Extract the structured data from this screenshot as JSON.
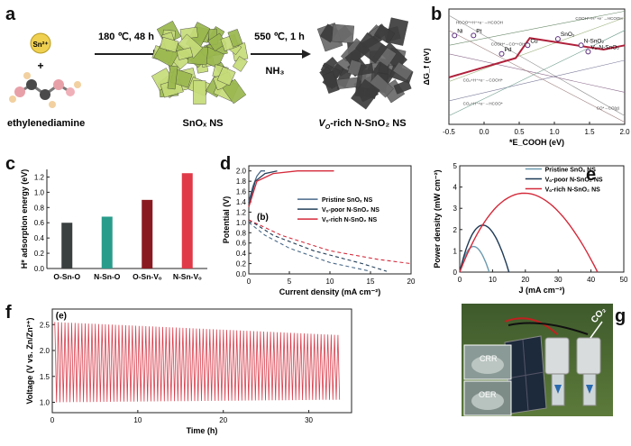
{
  "figure": {
    "panel_labels": [
      "a",
      "b",
      "c",
      "d",
      "e",
      "f",
      "g"
    ]
  },
  "panel_a": {
    "ion_label": "Sn²⁺",
    "plus": "+",
    "molecule_label": "ethylenediamine",
    "step1_condition": "180 ℃, 48 h",
    "step2_condition": "550 ℃, 1 h",
    "step2_gas": "NH₃",
    "product1": "SnOₓ NS",
    "product2_prefix": "V",
    "product2_sub": "O",
    "product2_suffix": "-rich N-SnO₂ NS",
    "colors": {
      "sheet1": "#b9d36a",
      "sheet2": "#5a5a5a",
      "arrow": "#222222"
    }
  },
  "chart_data": [
    {
      "id": "b",
      "type": "line",
      "xlabel": "*E_COOH (eV)",
      "ylabel": "ΔG_f (eV)",
      "xlim": [
        -0.5,
        2.0
      ],
      "ylim": [
        -1.3,
        1.4
      ],
      "xticks": [
        "-0.5",
        "0.0",
        "0.5",
        "1.0",
        "1.5",
        "2.0"
      ],
      "volcano": {
        "x": [
          -0.5,
          0.45,
          0.65,
          1.7,
          2.0
        ],
        "y": [
          -0.2,
          0.25,
          0.72,
          0.45,
          0.55
        ],
        "color": "#b0203a"
      },
      "points": [
        {
          "name": "Ni",
          "x": -0.42,
          "y": 0.78
        },
        {
          "name": "Pt",
          "x": -0.15,
          "y": 0.78
        },
        {
          "name": "Pd",
          "x": 0.25,
          "y": 0.35
        },
        {
          "name": "Cu",
          "x": 0.62,
          "y": 0.55
        },
        {
          "name": "SnO₂",
          "x": 1.05,
          "y": 0.7
        },
        {
          "name": "N-SnO₂",
          "x": 1.38,
          "y": 0.55
        },
        {
          "name": "Vₒ-N-SnO₂",
          "x": 1.48,
          "y": 0.4
        }
      ],
      "annotations": [
        "HCOO*+H⁺+e⁻→HCOOH",
        "COOH*+H⁺+e⁻→HCOOH",
        "CO₂+H⁺+e⁻→COOH*",
        "CO₂+H⁺+e⁻→HCOO*",
        "COOH*→CO*+OH*",
        "CO*→CO(g)"
      ]
    },
    {
      "id": "c",
      "type": "bar",
      "ylabel": "H* adsorption energy (eV)",
      "categories": [
        "O-Sn-O",
        "N-Sn-O",
        "O-Sn-Vₒ",
        "N-Sn-Vₒ"
      ],
      "values": [
        0.6,
        0.68,
        0.9,
        1.25
      ],
      "colors": [
        "#3a3f3f",
        "#2a9c8c",
        "#8a1a22",
        "#e03a48"
      ],
      "ylim": [
        0,
        1.3
      ],
      "yticks": [
        "0.0",
        "0.2",
        "0.4",
        "0.6",
        "0.8",
        "1.0",
        "1.2"
      ]
    },
    {
      "id": "d",
      "type": "line",
      "xlabel": "Current density (mA cm⁻²)",
      "ylabel": "Potential (V)",
      "xlim": [
        0,
        20
      ],
      "ylim": [
        0,
        2.1
      ],
      "xticks": [
        "0",
        "5",
        "10",
        "15",
        "20"
      ],
      "yticks": [
        "0.0",
        "0.2",
        "0.4",
        "0.6",
        "0.8",
        "1.0",
        "1.2",
        "1.4",
        "1.6",
        "1.8",
        "2.0"
      ],
      "inner_label": "(b)",
      "legend": [
        "Pristine SnOₓ NS",
        "Vₒ-poor N-SnO₂ NS",
        "Vₒ-rich N-SnO₂ NS"
      ],
      "series": [
        {
          "name": "Pristine",
          "color": "#4a6a8a",
          "charge": [
            [
              0,
              1.4
            ],
            [
              0.5,
              1.7
            ],
            [
              1.0,
              1.9
            ],
            [
              1.5,
              2.0
            ],
            [
              2.0,
              2.0
            ]
          ],
          "discharge": [
            [
              0,
              1.0
            ],
            [
              2,
              0.75
            ],
            [
              5,
              0.5
            ],
            [
              10,
              0.22
            ],
            [
              15,
              0.05
            ]
          ]
        },
        {
          "name": "poor",
          "color": "#24405a",
          "charge": [
            [
              0,
              1.35
            ],
            [
              0.8,
              1.8
            ],
            [
              2,
              1.95
            ],
            [
              3.5,
              2.0
            ]
          ],
          "discharge": [
            [
              0,
              1.05
            ],
            [
              3,
              0.75
            ],
            [
              8,
              0.45
            ],
            [
              14,
              0.2
            ],
            [
              17,
              0.05
            ]
          ]
        },
        {
          "name": "rich",
          "color": "#d42a3a",
          "charge": [
            [
              0,
              1.3
            ],
            [
              1,
              1.8
            ],
            [
              3,
              1.95
            ],
            [
              6,
              2.0
            ],
            [
              10.5,
              2.0
            ]
          ],
          "discharge": [
            [
              0,
              1.05
            ],
            [
              4,
              0.75
            ],
            [
              10,
              0.45
            ],
            [
              16,
              0.28
            ],
            [
              20,
              0.2
            ]
          ]
        }
      ]
    },
    {
      "id": "e",
      "type": "line",
      "xlabel": "J (mA cm⁻²)",
      "ylabel": "Power density (mW cm⁻²)",
      "xlim": [
        0,
        50
      ],
      "ylim": [
        0,
        5
      ],
      "xticks": [
        "0",
        "10",
        "20",
        "30",
        "40",
        "50"
      ],
      "yticks": [
        "0",
        "1",
        "2",
        "3",
        "4",
        "5"
      ],
      "legend": [
        "Pristine SnOₓ NS",
        "Vₒ-poor N-SnO₂ NS",
        "Vₒ-rich N-SnO₂ NS"
      ],
      "series": [
        {
          "name": "Pristine",
          "color": "#6a9ab0",
          "peak": 1.2,
          "jmax": 9
        },
        {
          "name": "poor",
          "color": "#1e3a56",
          "peak": 2.2,
          "jmax": 15
        },
        {
          "name": "rich",
          "color": "#d42a3a",
          "peak": 3.7,
          "jmax": 42
        }
      ]
    },
    {
      "id": "f",
      "type": "line",
      "xlabel": "Time (h)",
      "ylabel": "Voltage (V vs. Zn/Zn²⁺)",
      "xlim": [
        0,
        35
      ],
      "ylim": [
        0.8,
        2.8
      ],
      "xticks": [
        "0",
        "10",
        "20",
        "30"
      ],
      "yticks": [
        "1.0",
        "1.5",
        "2.0",
        "2.5"
      ],
      "inner_label": "(e)",
      "cycles": 85,
      "upper": [
        2.55,
        2.3
      ],
      "lower": [
        1.0,
        1.05
      ],
      "color": "#d8404e"
    }
  ],
  "panel_g": {
    "crr_label": "CRR",
    "oer_label": "OER",
    "gas_label": "CO₂"
  }
}
